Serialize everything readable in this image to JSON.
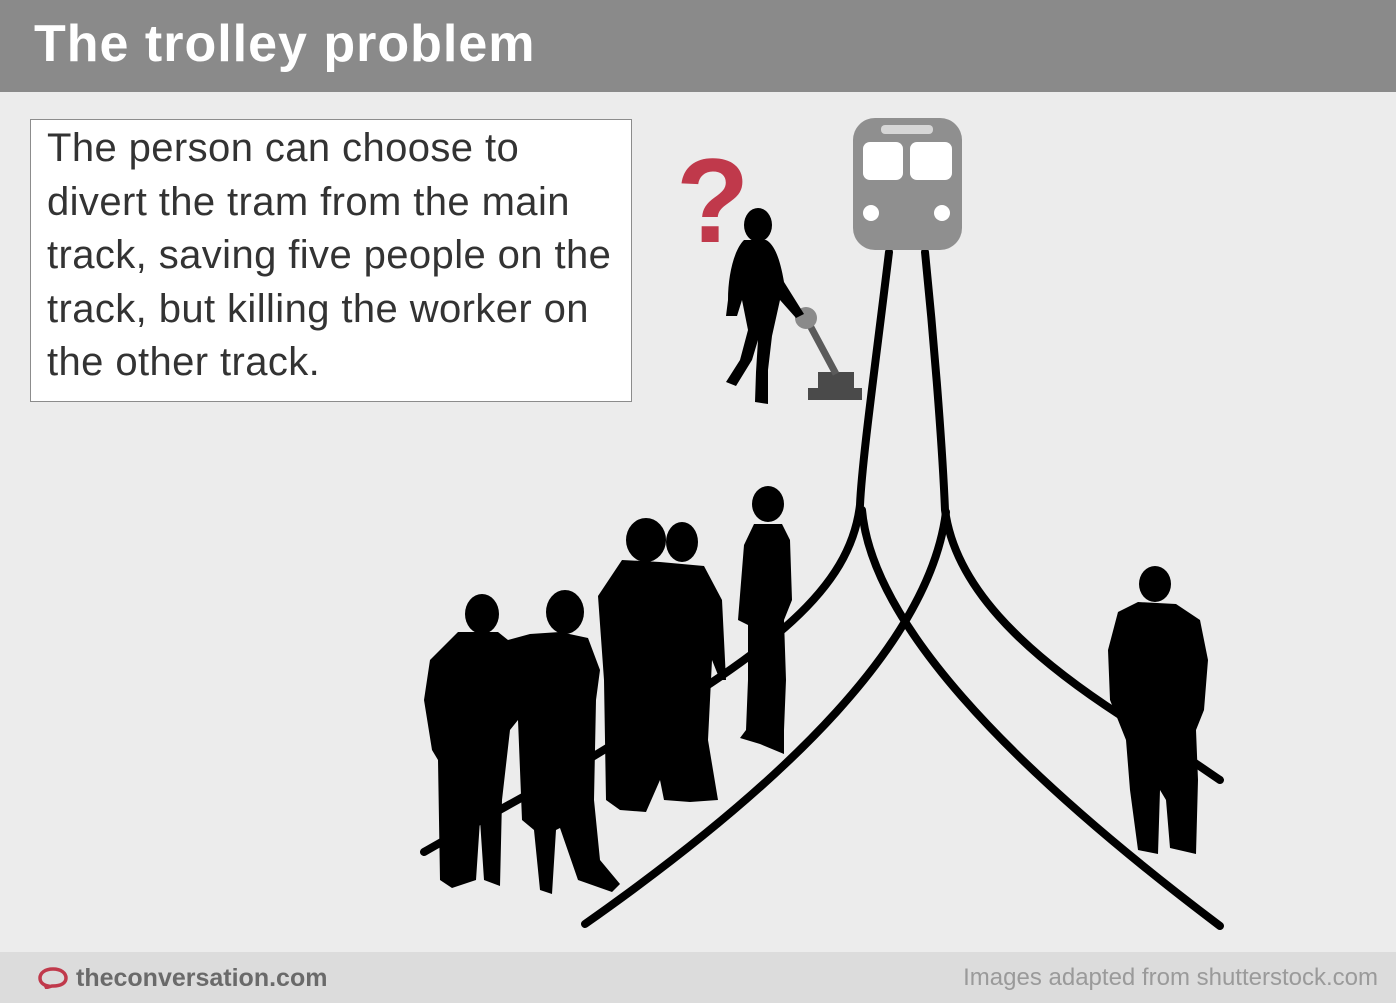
{
  "header": {
    "title": "The trolley problem"
  },
  "description": {
    "text": "The person can choose to divert the tram from the main track, saving five people on the track, but killing the worker on the other track."
  },
  "illustration": {
    "question_mark": "?",
    "icons": [
      "tram-icon",
      "question-mark-icon",
      "person-at-lever-silhouette",
      "lever-icon",
      "track-lines",
      "group-of-five-silhouettes",
      "worker-silhouette"
    ],
    "colors": {
      "question_mark": "#c0394b",
      "tram": "#8f8f8f",
      "silhouettes": "#0a0a0a",
      "lever": "#5a5a5a"
    }
  },
  "footer": {
    "brand": "theconversation.com",
    "credit": "Images adapted from shutterstock.com",
    "brand_icon": "speech-bubble-icon",
    "brand_color": "#c0394b"
  }
}
